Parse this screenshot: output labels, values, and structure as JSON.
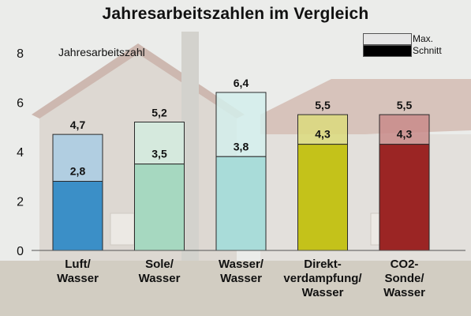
{
  "chart_data": {
    "type": "bar",
    "title": "Jahresarbeitszahlen im Vergleich",
    "ylabel": "Jahresarbeitszahl",
    "ylim": [
      0,
      8
    ],
    "yticks": [
      "0",
      "2",
      "4",
      "6",
      "8"
    ],
    "categories": [
      [
        "Luft/",
        "Wasser"
      ],
      [
        "Sole/",
        "Wasser"
      ],
      [
        "Wasser/",
        "Wasser"
      ],
      [
        "Direkt-",
        "verdampfung/",
        "Wasser"
      ],
      [
        "CO2-",
        "Sonde/",
        "Wasser"
      ]
    ],
    "series": [
      {
        "name": "Max.",
        "values": [
          4.7,
          5.2,
          6.4,
          5.5,
          5.5
        ],
        "labels": [
          "4,7",
          "5,2",
          "6,4",
          "5,5",
          "5,5"
        ]
      },
      {
        "name": "Schnitt",
        "values": [
          2.8,
          3.5,
          3.8,
          4.3,
          4.3
        ],
        "labels": [
          "2,8",
          "3,5",
          "3,8",
          "4,3",
          "4,3"
        ]
      }
    ],
    "colors_avg": [
      "#3b8fc7",
      "#a6d8c0",
      "#a9dcd9",
      "#c4c21a",
      "#9b2524"
    ],
    "colors_max": [
      "#a9cde4",
      "#d3ecdf",
      "#d4eeec",
      "#dcdb7c",
      "#c98b8a"
    ],
    "grid": false,
    "legend": "top-right"
  },
  "legend": {
    "max_label": "Max.",
    "avg_label": "Schnitt"
  }
}
